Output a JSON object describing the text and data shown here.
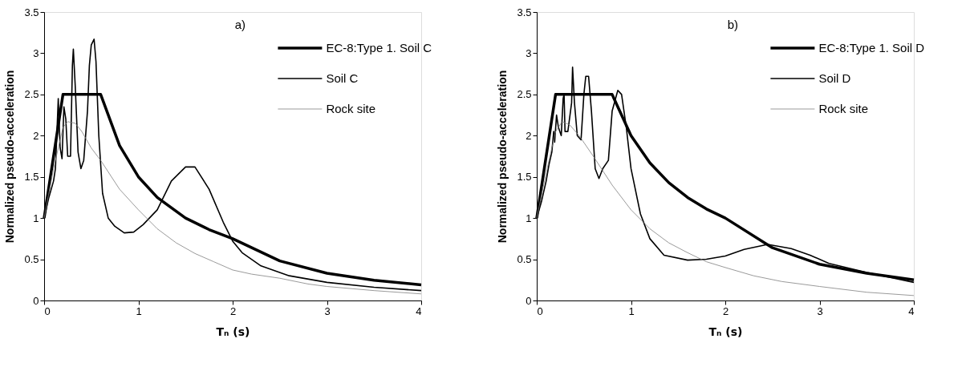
{
  "chart_data": [
    {
      "type": "line",
      "xlabel": "Tₙ (s)",
      "ylabel": "Normalized pseudo-acceleration",
      "annotations": [
        "a)"
      ],
      "xlim": [
        0,
        4
      ],
      "ylim": [
        0,
        3.5
      ],
      "xticks": [
        0,
        1,
        2,
        3,
        4
      ],
      "yticks": [
        0,
        0.5,
        1,
        1.5,
        2,
        2.5,
        3,
        3.5
      ],
      "grid": false,
      "legend": "top right",
      "marker": "none",
      "line_style": "solid",
      "series": [
        {
          "name": "EC-8:Type 1. Soil C",
          "color": "#000000",
          "x": [
            0,
            0.2,
            0.6,
            0.8,
            1.0,
            1.2,
            1.5,
            1.75,
            2.0,
            2.5,
            3.0,
            3.5,
            4.0
          ],
          "values": [
            1,
            2.5,
            2.5,
            1.88,
            1.5,
            1.25,
            1.0,
            0.86,
            0.75,
            0.48,
            0.33,
            0.245,
            0.19
          ]
        },
        {
          "name": "Soil C",
          "color": "#000000",
          "x": [
            0,
            0.05,
            0.1,
            0.12,
            0.15,
            0.17,
            0.19,
            0.21,
            0.23,
            0.25,
            0.28,
            0.3,
            0.31,
            0.33,
            0.36,
            0.39,
            0.42,
            0.46,
            0.48,
            0.5,
            0.53,
            0.55,
            0.58,
            0.62,
            0.68,
            0.75,
            0.85,
            0.95,
            1.05,
            1.2,
            1.35,
            1.5,
            1.6,
            1.75,
            1.9,
            2.0,
            2.1,
            2.3,
            2.6,
            3.0,
            3.5,
            4.0
          ],
          "values": [
            1,
            1.25,
            1.45,
            1.6,
            2.45,
            1.85,
            1.72,
            2.35,
            2.2,
            1.75,
            1.75,
            2.85,
            3.05,
            2.6,
            1.8,
            1.6,
            1.7,
            2.3,
            2.85,
            3.1,
            3.17,
            2.9,
            2.0,
            1.3,
            1.0,
            0.9,
            0.82,
            0.83,
            0.92,
            1.1,
            1.45,
            1.62,
            1.62,
            1.35,
            0.95,
            0.72,
            0.58,
            0.42,
            0.3,
            0.22,
            0.16,
            0.12
          ]
        },
        {
          "name": "Rock site",
          "color": "#808080",
          "x": [
            0,
            0.1,
            0.2,
            0.25,
            0.33,
            0.4,
            0.5,
            0.6,
            0.8,
            1.0,
            1.2,
            1.4,
            1.6,
            1.8,
            2.0,
            2.2,
            2.5,
            2.8,
            3.0,
            3.5,
            4.0
          ],
          "values": [
            1,
            1.6,
            2.1,
            2.17,
            2.15,
            2.05,
            1.85,
            1.7,
            1.35,
            1.1,
            0.87,
            0.7,
            0.57,
            0.47,
            0.37,
            0.32,
            0.27,
            0.2,
            0.17,
            0.12,
            0.08
          ]
        }
      ]
    },
    {
      "type": "line",
      "xlabel": "Tₙ (s)",
      "ylabel": "Normalized pseudo-acceleration",
      "annotations": [
        "b)"
      ],
      "xlim": [
        0,
        4
      ],
      "ylim": [
        0,
        3.5
      ],
      "xticks": [
        0,
        1,
        2,
        3,
        4
      ],
      "yticks": [
        0,
        0.5,
        1,
        1.5,
        2,
        2.5,
        3,
        3.5
      ],
      "grid": false,
      "legend": "top right",
      "marker": "none",
      "line_style": "solid",
      "series": [
        {
          "name": "EC-8:Type 1. Soil D",
          "color": "#000000",
          "x": [
            0,
            0.2,
            0.8,
            1.0,
            1.2,
            1.4,
            1.6,
            1.8,
            2.0,
            2.5,
            3.0,
            3.5,
            4.0
          ],
          "values": [
            1,
            2.5,
            2.5,
            2.0,
            1.67,
            1.43,
            1.25,
            1.11,
            1.0,
            0.64,
            0.44,
            0.33,
            0.25
          ]
        },
        {
          "name": "Soil D",
          "color": "#000000",
          "x": [
            0,
            0.05,
            0.1,
            0.13,
            0.16,
            0.18,
            0.19,
            0.21,
            0.23,
            0.26,
            0.28,
            0.29,
            0.3,
            0.33,
            0.37,
            0.38,
            0.4,
            0.43,
            0.47,
            0.5,
            0.52,
            0.55,
            0.58,
            0.62,
            0.66,
            0.7,
            0.76,
            0.8,
            0.86,
            0.9,
            0.95,
            1.0,
            1.1,
            1.2,
            1.35,
            1.6,
            1.8,
            2.0,
            2.2,
            2.45,
            2.7,
            2.9,
            3.1,
            3.5,
            4.0
          ],
          "values": [
            1,
            1.2,
            1.45,
            1.65,
            1.8,
            2.05,
            1.92,
            2.25,
            2.1,
            2.0,
            2.45,
            2.5,
            2.05,
            2.05,
            2.4,
            2.83,
            2.4,
            2.0,
            1.95,
            2.5,
            2.72,
            2.72,
            2.3,
            1.6,
            1.48,
            1.6,
            1.7,
            2.3,
            2.55,
            2.5,
            2.1,
            1.6,
            1.05,
            0.75,
            0.55,
            0.49,
            0.5,
            0.54,
            0.62,
            0.68,
            0.63,
            0.55,
            0.45,
            0.34,
            0.22
          ]
        },
        {
          "name": "Rock site",
          "color": "#808080",
          "x": [
            0,
            0.1,
            0.2,
            0.27,
            0.35,
            0.45,
            0.6,
            0.8,
            1.0,
            1.2,
            1.4,
            1.6,
            1.8,
            2.0,
            2.3,
            2.6,
            3.0,
            3.5,
            4.0
          ],
          "values": [
            1,
            1.55,
            2.05,
            2.17,
            2.13,
            2.0,
            1.75,
            1.4,
            1.1,
            0.87,
            0.7,
            0.58,
            0.47,
            0.4,
            0.3,
            0.23,
            0.17,
            0.1,
            0.06
          ]
        }
      ]
    }
  ]
}
